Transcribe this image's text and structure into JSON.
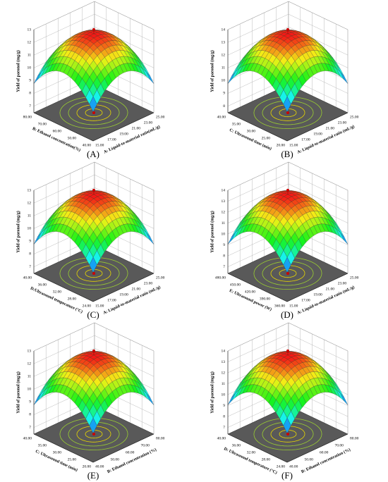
{
  "panels": [
    {
      "label": "(A)",
      "z_axis_title": "Yield of paeonol (mg/g)",
      "z_ticks": [
        "7",
        "8",
        "9",
        "10",
        "11",
        "12",
        "13"
      ],
      "left_axis_title": "B: Ethanol concentration(%)",
      "left_ticks": [
        "80.00",
        "70.00",
        "60.00",
        "50.00",
        "40.00"
      ],
      "right_axis_title": "A: Liquid-to-material ratio(mL/g)",
      "right_ticks": [
        "15.00",
        "17.00",
        "19.00",
        "21.00",
        "23.00",
        "25.00"
      ]
    },
    {
      "label": "(B)",
      "z_axis_title": "Yield of paeonol (mg/g)",
      "z_ticks": [
        "8",
        "9",
        "10",
        "11",
        "12",
        "13",
        "14"
      ],
      "left_axis_title": "C: Ultrasound time (min)",
      "left_ticks": [
        "40.00",
        "35.00",
        "30.00",
        "25.00",
        "20.00"
      ],
      "right_axis_title": "A: Liquid-to-material ratio (mL/g)",
      "right_ticks": [
        "15.00",
        "17.00",
        "19.00",
        "21.00",
        "23.00",
        "25.00"
      ]
    },
    {
      "label": "(C)",
      "z_axis_title": "Yield of paeonol (mg/g)",
      "z_ticks": [
        "7",
        "8",
        "9",
        "10",
        "11",
        "12",
        "13"
      ],
      "left_axis_title": "D:Ultrasound temperature (°C)",
      "left_ticks": [
        "40.00",
        "36.00",
        "32.00",
        "28.00",
        "24.00"
      ],
      "right_axis_title": "A: Liquid-to-material ratio (mL/g)",
      "right_ticks": [
        "15.00",
        "17.00",
        "19.00",
        "21.00",
        "23.00",
        "25.00"
      ]
    },
    {
      "label": "(D)",
      "z_axis_title": "Yield of paeonol (mg/g)",
      "z_ticks": [
        "7",
        "8",
        "9",
        "10",
        "11",
        "12",
        "13",
        "14"
      ],
      "left_axis_title": "E: Ultrasound power (W)",
      "left_ticks": [
        "480.00",
        "450.00",
        "420.00",
        "390.00",
        "360.00"
      ],
      "right_axis_title": "A: Liquid-to-material ratio (mL/g)",
      "right_ticks": [
        "15.00",
        "17.00",
        "19.00",
        "21.00",
        "23.00",
        "25.00"
      ]
    },
    {
      "label": "(E)",
      "z_axis_title": "Yield of paeonol (mg/g)",
      "z_ticks": [
        "7",
        "8",
        "9",
        "10",
        "11",
        "12",
        "13"
      ],
      "left_axis_title": "C: Ultrasound time (min)",
      "left_ticks": [
        "40.00",
        "35.00",
        "30.00",
        "25.00",
        "20.00"
      ],
      "right_axis_title": "B: Ethanol concentration (%)",
      "right_ticks": [
        "40.00",
        "50.00",
        "60.00",
        "70.00",
        "80.00"
      ]
    },
    {
      "label": "(F)",
      "z_axis_title": "Yield of paeonol (mg/g)",
      "z_ticks": [
        "7",
        "8",
        "9",
        "10",
        "11",
        "12",
        "13",
        "14"
      ],
      "left_axis_title": "D: Ultrasound temperature (°C)",
      "left_ticks": [
        "40.00",
        "36.00",
        "32.00",
        "28.00",
        "24.00"
      ],
      "right_axis_title": "B: Ethanol concentration (%)",
      "right_ticks": [
        "40.00",
        "50.00",
        "60.00",
        "70.00",
        "80.00"
      ]
    }
  ]
}
